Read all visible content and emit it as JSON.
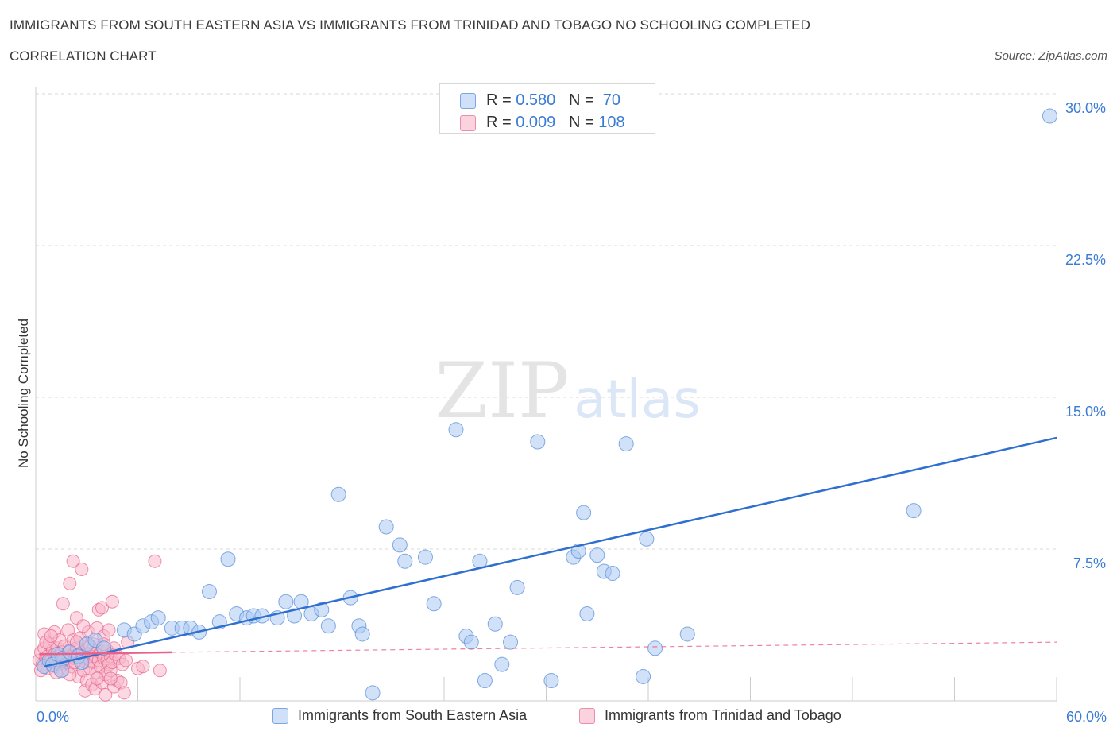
{
  "header": {
    "title": "IMMIGRANTS FROM SOUTH EASTERN ASIA VS IMMIGRANTS FROM TRINIDAD AND TOBAGO NO SCHOOLING COMPLETED",
    "subtitle": "CORRELATION CHART",
    "source": "Source: ZipAtlas.com"
  },
  "watermark": {
    "zip": "ZIP",
    "atlas": "atlas"
  },
  "legend_top": {
    "rows": [
      {
        "r_label": "R = ",
        "r_value": "0.580",
        "n_label": "N = ",
        "n_value": " 70",
        "color": "#a9c8f3"
      },
      {
        "r_label": "R = ",
        "r_value": "0.009",
        "n_label": "N = ",
        "n_value": "108",
        "color": "#f7b8cb"
      }
    ]
  },
  "colors": {
    "blue_fill": "#a9c8f3",
    "blue_stroke": "#5b8fd9",
    "blue_line": "#2f6fd0",
    "pink_fill": "#f7b8cb",
    "pink_stroke": "#e8628c",
    "pink_line": "#e8628c",
    "grid": "#d9d9d9",
    "tick_label": "#3a7bd5"
  },
  "chart_data": {
    "type": "scatter",
    "title": "IMMIGRANTS FROM SOUTH EASTERN ASIA VS IMMIGRANTS FROM TRINIDAD AND TOBAGO NO SCHOOLING COMPLETED",
    "xlabel": "",
    "ylabel": "No Schooling Completed",
    "xlim": [
      0,
      60
    ],
    "ylim": [
      0,
      30
    ],
    "x_tick_labels": [
      "0.0%",
      "60.0%"
    ],
    "y_ticks": [
      7.5,
      15.0,
      22.5,
      30.0
    ],
    "y_tick_labels": [
      "7.5%",
      "15.0%",
      "22.5%",
      "30.0%"
    ],
    "grid": true,
    "series": [
      {
        "name": "Immigrants from South Eastern Asia",
        "R": 0.58,
        "N": 70,
        "trend": {
          "x": [
            0.5,
            60
          ],
          "y": [
            1.7,
            13.0
          ],
          "style": "solid"
        },
        "points": [
          [
            0.5,
            1.7
          ],
          [
            0.8,
            2.0
          ],
          [
            1.0,
            1.8
          ],
          [
            1.3,
            2.3
          ],
          [
            1.6,
            2.1
          ],
          [
            2.0,
            2.4
          ],
          [
            2.5,
            2.2
          ],
          [
            3.0,
            2.8
          ],
          [
            3.5,
            3.0
          ],
          [
            4.0,
            2.6
          ],
          [
            5.2,
            3.5
          ],
          [
            5.8,
            3.3
          ],
          [
            6.3,
            3.7
          ],
          [
            6.8,
            3.9
          ],
          [
            7.2,
            4.1
          ],
          [
            8.0,
            3.6
          ],
          [
            8.6,
            3.6
          ],
          [
            9.1,
            3.6
          ],
          [
            9.6,
            3.4
          ],
          [
            10.2,
            5.4
          ],
          [
            10.8,
            3.9
          ],
          [
            11.3,
            7.0
          ],
          [
            11.8,
            4.3
          ],
          [
            12.4,
            4.1
          ],
          [
            12.8,
            4.2
          ],
          [
            13.3,
            4.2
          ],
          [
            14.2,
            4.1
          ],
          [
            14.7,
            4.9
          ],
          [
            15.2,
            4.2
          ],
          [
            15.6,
            4.9
          ],
          [
            16.2,
            4.3
          ],
          [
            16.8,
            4.5
          ],
          [
            17.2,
            3.7
          ],
          [
            17.8,
            10.2
          ],
          [
            18.5,
            5.1
          ],
          [
            19.0,
            3.7
          ],
          [
            19.2,
            3.3
          ],
          [
            19.8,
            0.4
          ],
          [
            20.6,
            8.6
          ],
          [
            21.4,
            7.7
          ],
          [
            21.7,
            6.9
          ],
          [
            22.9,
            7.1
          ],
          [
            23.4,
            4.8
          ],
          [
            24.7,
            13.4
          ],
          [
            25.3,
            3.2
          ],
          [
            25.6,
            2.9
          ],
          [
            26.1,
            6.9
          ],
          [
            26.4,
            1.0
          ],
          [
            27.0,
            3.8
          ],
          [
            27.4,
            1.8
          ],
          [
            27.9,
            2.9
          ],
          [
            28.3,
            5.6
          ],
          [
            29.5,
            12.8
          ],
          [
            30.3,
            1.0
          ],
          [
            31.6,
            7.1
          ],
          [
            31.9,
            7.4
          ],
          [
            32.2,
            9.3
          ],
          [
            32.4,
            4.3
          ],
          [
            33.0,
            7.2
          ],
          [
            33.4,
            6.4
          ],
          [
            33.9,
            6.3
          ],
          [
            34.7,
            12.7
          ],
          [
            35.7,
            1.2
          ],
          [
            35.9,
            8.0
          ],
          [
            36.4,
            2.6
          ],
          [
            38.3,
            3.3
          ],
          [
            51.6,
            9.4
          ],
          [
            59.6,
            28.9
          ],
          [
            1.5,
            1.5
          ],
          [
            2.7,
            1.9
          ]
        ]
      },
      {
        "name": "Immigrants from Trinidad and Tobago",
        "R": 0.009,
        "N": 108,
        "trend": {
          "x": [
            0.2,
            8.0
          ],
          "y": [
            2.3,
            2.4
          ],
          "style": "solid"
        },
        "trend_extended": {
          "x": [
            8.0,
            60
          ],
          "y": [
            2.4,
            2.9
          ],
          "style": "dashed"
        },
        "points": [
          [
            0.2,
            2.0
          ],
          [
            0.3,
            2.4
          ],
          [
            0.4,
            1.8
          ],
          [
            0.5,
            2.6
          ],
          [
            0.5,
            3.3
          ],
          [
            0.6,
            2.1
          ],
          [
            0.7,
            2.2
          ],
          [
            0.7,
            1.6
          ],
          [
            0.8,
            2.8
          ],
          [
            0.9,
            2.0
          ],
          [
            1.0,
            2.5
          ],
          [
            1.0,
            1.9
          ],
          [
            1.1,
            2.3
          ],
          [
            1.1,
            3.4
          ],
          [
            1.2,
            2.0
          ],
          [
            1.2,
            1.7
          ],
          [
            1.3,
            2.6
          ],
          [
            1.3,
            2.2
          ],
          [
            1.4,
            1.8
          ],
          [
            1.4,
            3.0
          ],
          [
            1.5,
            2.4
          ],
          [
            1.5,
            2.1
          ],
          [
            1.6,
            4.8
          ],
          [
            1.6,
            1.5
          ],
          [
            1.7,
            2.2
          ],
          [
            1.7,
            2.7
          ],
          [
            1.8,
            1.9
          ],
          [
            1.8,
            2.3
          ],
          [
            1.9,
            3.5
          ],
          [
            1.9,
            2.0
          ],
          [
            2.0,
            5.8
          ],
          [
            2.0,
            2.5
          ],
          [
            2.1,
            1.7
          ],
          [
            2.1,
            2.2
          ],
          [
            2.2,
            6.9
          ],
          [
            2.2,
            3.0
          ],
          [
            2.3,
            2.1
          ],
          [
            2.3,
            1.9
          ],
          [
            2.4,
            2.6
          ],
          [
            2.4,
            4.1
          ],
          [
            2.5,
            2.3
          ],
          [
            2.5,
            1.2
          ],
          [
            2.6,
            2.0
          ],
          [
            2.6,
            3.1
          ],
          [
            2.7,
            6.5
          ],
          [
            2.7,
            2.4
          ],
          [
            2.8,
            1.5
          ],
          [
            2.8,
            2.2
          ],
          [
            2.9,
            0.5
          ],
          [
            2.9,
            1.9
          ],
          [
            3.0,
            2.7
          ],
          [
            3.0,
            1.0
          ],
          [
            3.1,
            2.3
          ],
          [
            3.1,
            3.4
          ],
          [
            3.2,
            2.0
          ],
          [
            3.2,
            1.6
          ],
          [
            3.3,
            0.8
          ],
          [
            3.3,
            2.5
          ],
          [
            3.4,
            1.9
          ],
          [
            3.4,
            2.8
          ],
          [
            3.5,
            2.2
          ],
          [
            3.5,
            0.6
          ],
          [
            3.6,
            1.4
          ],
          [
            3.6,
            3.6
          ],
          [
            3.7,
            2.0
          ],
          [
            3.7,
            4.5
          ],
          [
            3.8,
            1.7
          ],
          [
            3.8,
            2.4
          ],
          [
            3.9,
            4.6
          ],
          [
            3.9,
            0.9
          ],
          [
            4.0,
            2.1
          ],
          [
            4.0,
            3.2
          ],
          [
            4.1,
            1.3
          ],
          [
            4.1,
            0.3
          ],
          [
            4.2,
            2.0
          ],
          [
            4.2,
            2.5
          ],
          [
            4.3,
            1.8
          ],
          [
            4.3,
            3.5
          ],
          [
            4.4,
            1.5
          ],
          [
            4.4,
            2.2
          ],
          [
            4.5,
            4.9
          ],
          [
            4.5,
            1.9
          ],
          [
            4.6,
            2.6
          ],
          [
            4.6,
            0.7
          ],
          [
            4.7,
            2.3
          ],
          [
            4.8,
            1.0
          ],
          [
            4.9,
            2.1
          ],
          [
            5.0,
            0.9
          ],
          [
            5.1,
            1.8
          ],
          [
            5.2,
            0.4
          ],
          [
            5.3,
            2.0
          ],
          [
            5.4,
            2.9
          ],
          [
            6.0,
            1.6
          ],
          [
            6.3,
            1.7
          ],
          [
            7.0,
            6.9
          ],
          [
            7.3,
            1.5
          ],
          [
            0.3,
            1.5
          ],
          [
            0.6,
            2.9
          ],
          [
            0.9,
            3.2
          ],
          [
            1.2,
            1.4
          ],
          [
            1.6,
            2.0
          ],
          [
            2.0,
            1.3
          ],
          [
            2.4,
            2.9
          ],
          [
            2.8,
            3.7
          ],
          [
            3.2,
            2.7
          ],
          [
            3.6,
            1.1
          ],
          [
            4.0,
            2.8
          ],
          [
            4.4,
            1.1
          ]
        ]
      }
    ],
    "legend": "bottom"
  }
}
